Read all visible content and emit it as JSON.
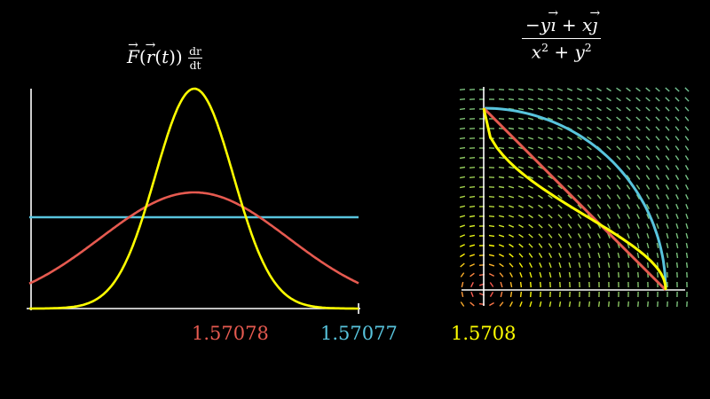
{
  "left_panel": {
    "formula_parts": {
      "F": "F",
      "paren_open": "(",
      "r": "r",
      "t_open": "(",
      "t": "t",
      "close": "))",
      "dr": "dr",
      "dt": "dt"
    }
  },
  "right_panel": {
    "formula_parts": {
      "num_a": "−y",
      "i": "ı",
      "plus": " + x",
      "j": "ȷ",
      "den_x": "x",
      "den_plus": " + y",
      "exp": "2"
    }
  },
  "readouts": [
    {
      "value": "1.57078",
      "color": "#E65A50"
    },
    {
      "value": "1.57077",
      "color": "#58C4DD"
    },
    {
      "value": "1.5708",
      "color": "#FFFF00"
    }
  ],
  "colors": {
    "yellow": "#FFFF00",
    "red": "#E65A50",
    "blue": "#58C4DD",
    "axis": "#FFFFFF"
  },
  "chart_data": {
    "type": "line",
    "series": [
      {
        "color": "#FFFF00",
        "shape": "bell"
      },
      {
        "color": "#E65A50",
        "shape": "bell"
      },
      {
        "color": "#58C4DD",
        "shape": "constant"
      }
    ]
  }
}
